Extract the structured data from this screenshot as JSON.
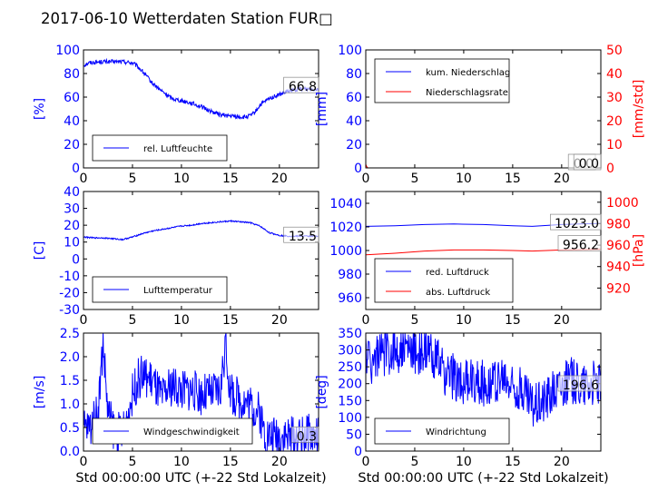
{
  "figure": {
    "title": "2017-06-10 Wetterdaten Station FUR□"
  },
  "colors": {
    "left_axis": "#0000ff",
    "right_axis": "#ff0000",
    "series_blue": "#0000ff",
    "series_red": "#ff0000",
    "text": "#000000"
  },
  "chart_data": [
    {
      "type": "line",
      "panel": "humidity",
      "ylabel": "[%]",
      "xlim": [
        0,
        24
      ],
      "ylim": [
        0,
        100
      ],
      "xticks": [
        0,
        5,
        10,
        15,
        20
      ],
      "yticks": [
        0,
        20,
        40,
        60,
        80,
        100
      ],
      "legend_position": "lower-left",
      "annotation": "66.8",
      "series": [
        {
          "name": "rel. Luftfeuchte",
          "color": "#0000ff",
          "x": [
            0,
            0.5,
            1,
            2,
            3,
            4,
            5,
            5.5,
            6,
            6.5,
            7,
            8,
            9,
            10,
            11,
            12,
            13,
            14,
            15,
            16,
            16.5,
            17,
            17.5,
            18,
            19,
            20,
            21,
            22,
            23,
            24
          ],
          "y": [
            87,
            89,
            89.5,
            90,
            90,
            90,
            89,
            86,
            82,
            77,
            72,
            65,
            59,
            57,
            55,
            52,
            48,
            45,
            44,
            43,
            43,
            44,
            47,
            53,
            59,
            62,
            65,
            67,
            67,
            67
          ],
          "noise": 1.8
        }
      ]
    },
    {
      "type": "line",
      "panel": "precipitation",
      "ylabel": "[mm]",
      "y2label": "[mm/std]",
      "xlim": [
        0,
        24
      ],
      "ylim": [
        0,
        100
      ],
      "y2lim": [
        0,
        50
      ],
      "xticks": [
        0,
        5,
        10,
        15,
        20
      ],
      "yticks": [
        0,
        20,
        40,
        60,
        80,
        100
      ],
      "y2ticks": [
        0,
        10,
        20,
        30,
        40,
        50
      ],
      "legend_position": "upper-left",
      "annotations": [
        "0.0",
        "0.0"
      ],
      "series": [
        {
          "name": "kum. Niederschlag",
          "axis": "left",
          "color": "#0000ff",
          "x": [
            0,
            24
          ],
          "y": [
            0,
            0
          ],
          "noise": 0
        },
        {
          "name": "Niederschlagsrate",
          "axis": "right",
          "color": "#ff0000",
          "x": [
            0,
            0.1,
            0.2,
            24
          ],
          "y": [
            1.5,
            0.5,
            0,
            0
          ],
          "noise": 0
        }
      ]
    },
    {
      "type": "line",
      "panel": "temperature",
      "ylabel": "[C]",
      "xlim": [
        0,
        24
      ],
      "ylim": [
        -30,
        40
      ],
      "xticks": [
        0,
        5,
        10,
        15,
        20
      ],
      "yticks": [
        -30,
        -20,
        -10,
        0,
        10,
        20,
        30,
        40
      ],
      "legend_position": "lower-left",
      "annotation": "13.5",
      "series": [
        {
          "name": "Lufttemperatur",
          "color": "#0000ff",
          "x": [
            0,
            1,
            2,
            3,
            4,
            5,
            6,
            7,
            8,
            9,
            10,
            11,
            12,
            13,
            14,
            15,
            16,
            17,
            18,
            19,
            20,
            21,
            22,
            23,
            24
          ],
          "y": [
            13,
            12.5,
            12.5,
            12,
            11.5,
            13,
            15,
            16.5,
            17.5,
            18.5,
            19.5,
            20,
            21,
            21.5,
            22,
            22.5,
            22,
            21.5,
            19.5,
            15.5,
            14,
            13.5,
            13.5,
            13.5,
            13.5
          ],
          "noise": 0.4
        }
      ]
    },
    {
      "type": "line",
      "panel": "pressure",
      "ylabel": "",
      "y2label": "[hPa]",
      "xlim": [
        0,
        24
      ],
      "ylim": [
        950,
        1050
      ],
      "y2lim": [
        900,
        1010
      ],
      "xticks": [
        0,
        5,
        10,
        15,
        20
      ],
      "yticks": [
        960,
        980,
        1000,
        1020,
        1040
      ],
      "y2ticks": [
        920,
        940,
        960,
        980,
        1000
      ],
      "legend_position": "lower-left",
      "annotations": [
        "1023.0",
        "956.2"
      ],
      "series": [
        {
          "name": "red. Luftdruck",
          "axis": "left",
          "color": "#0000ff",
          "x": [
            0,
            3,
            6,
            9,
            12,
            15,
            17,
            20,
            24
          ],
          "y": [
            1020.5,
            1021,
            1022,
            1022.5,
            1022,
            1021,
            1020.5,
            1022,
            1023
          ],
          "noise": 0
        },
        {
          "name": "abs. Luftdruck",
          "axis": "right",
          "color": "#ff0000",
          "x": [
            0,
            3,
            6,
            9,
            12,
            15,
            17,
            20,
            24
          ],
          "y": [
            951,
            952.5,
            954.5,
            955.5,
            955.5,
            955,
            954.5,
            955.5,
            956.2
          ],
          "noise": 0
        }
      ]
    },
    {
      "type": "line",
      "panel": "wind-speed",
      "ylabel": "[m/s]",
      "xlabel": "Std 00:00:00 UTC (+-22 Std Lokalzeit)",
      "xlim": [
        0,
        24
      ],
      "ylim": [
        0,
        2.5
      ],
      "xticks": [
        0,
        5,
        10,
        15,
        20
      ],
      "yticks": [
        0,
        0.5,
        1,
        1.5,
        2,
        2.5
      ],
      "legend_position": "lower-center",
      "annotation": "0.3",
      "series": [
        {
          "name": "Windgeschwindigkeit",
          "color": "#0000ff",
          "x": [
            0,
            0.5,
            1,
            1.5,
            2,
            2.5,
            3,
            3.5,
            4,
            4.5,
            5,
            5.5,
            6,
            7,
            8,
            9,
            10,
            11,
            12,
            13,
            14,
            14.5,
            15,
            16,
            17,
            18,
            18.5,
            19,
            20,
            21,
            22,
            23,
            24
          ],
          "y": [
            0.5,
            0.5,
            0.6,
            0.9,
            2.3,
            0.8,
            0.5,
            0.4,
            0.4,
            0.7,
            1.2,
            1.5,
            1.6,
            1.5,
            1.1,
            1.4,
            1.3,
            1.3,
            1.2,
            1.2,
            1.3,
            2.3,
            1.2,
            1.1,
            1.0,
            0.8,
            0.4,
            0.3,
            0.35,
            0.3,
            0.3,
            0.35,
            0.3
          ],
          "noise": 0.45
        }
      ]
    },
    {
      "type": "line",
      "panel": "wind-direction",
      "ylabel": "[deg]",
      "xlabel": "Std 00:00:00 UTC (+-22 Std Lokalzeit)",
      "xlim": [
        0,
        24
      ],
      "ylim": [
        0,
        350
      ],
      "xticks": [
        0,
        5,
        10,
        15,
        20
      ],
      "yticks": [
        0,
        50,
        100,
        150,
        200,
        250,
        300,
        350
      ],
      "legend_position": "lower-left",
      "annotation": "196.6",
      "series": [
        {
          "name": "Windrichtung",
          "color": "#0000ff",
          "x": [
            0,
            0.5,
            1,
            2,
            3,
            4,
            5,
            6,
            7,
            8,
            9,
            10,
            11,
            12,
            13,
            14,
            15,
            16,
            17,
            18,
            19,
            20,
            21,
            22,
            23,
            24
          ],
          "y": [
            300,
            260,
            280,
            290,
            300,
            300,
            295,
            290,
            285,
            230,
            220,
            200,
            210,
            200,
            205,
            210,
            190,
            180,
            140,
            150,
            180,
            200,
            210,
            200,
            200,
            200
          ],
          "noise": 70
        }
      ]
    }
  ]
}
